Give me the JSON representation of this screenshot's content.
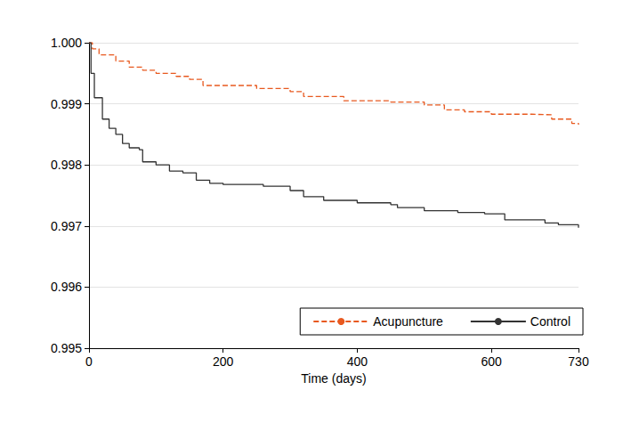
{
  "chart_data": {
    "type": "line",
    "x_label": "Time (days)",
    "xlim": [
      0,
      730
    ],
    "xticks": [
      0,
      200,
      400,
      600,
      730
    ],
    "ylim": [
      0.995,
      1.0
    ],
    "yticks": [
      0.995,
      0.996,
      0.997,
      0.998,
      0.999,
      {
        "value": 1.0,
        "label": "1.000"
      }
    ],
    "grid": true,
    "legend": "lower right",
    "series": [
      {
        "name": "Acupuncture",
        "color": "#e8591f",
        "line_style": "dashed",
        "x": [
          0,
          5,
          15,
          40,
          60,
          80,
          100,
          130,
          150,
          170,
          250,
          300,
          320,
          350,
          380,
          450,
          500,
          530,
          560,
          600,
          660,
          690,
          720,
          730
        ],
        "values": [
          1.0,
          0.9999,
          0.9998,
          0.9997,
          0.9996,
          0.99955,
          0.9995,
          0.99945,
          0.9994,
          0.9993,
          0.99925,
          0.9992,
          0.99912,
          0.99912,
          0.99905,
          0.99903,
          0.99898,
          0.9989,
          0.99887,
          0.99883,
          0.99882,
          0.99875,
          0.99868,
          0.99866
        ]
      },
      {
        "name": "Control",
        "color": "#333333",
        "line_style": "solid",
        "x": [
          0,
          3,
          8,
          20,
          30,
          40,
          50,
          60,
          75,
          80,
          100,
          120,
          140,
          160,
          180,
          200,
          260,
          300,
          320,
          350,
          400,
          450,
          460,
          500,
          550,
          590,
          620,
          680,
          700,
          730
        ],
        "values": [
          1.0,
          0.9995,
          0.9991,
          0.99875,
          0.9986,
          0.9985,
          0.99835,
          0.99828,
          0.99825,
          0.99805,
          0.998,
          0.9979,
          0.99787,
          0.99775,
          0.9977,
          0.99768,
          0.99765,
          0.99758,
          0.99748,
          0.99742,
          0.99738,
          0.99735,
          0.9973,
          0.99725,
          0.99722,
          0.9972,
          0.9971,
          0.99705,
          0.99702,
          0.99697
        ]
      }
    ]
  }
}
